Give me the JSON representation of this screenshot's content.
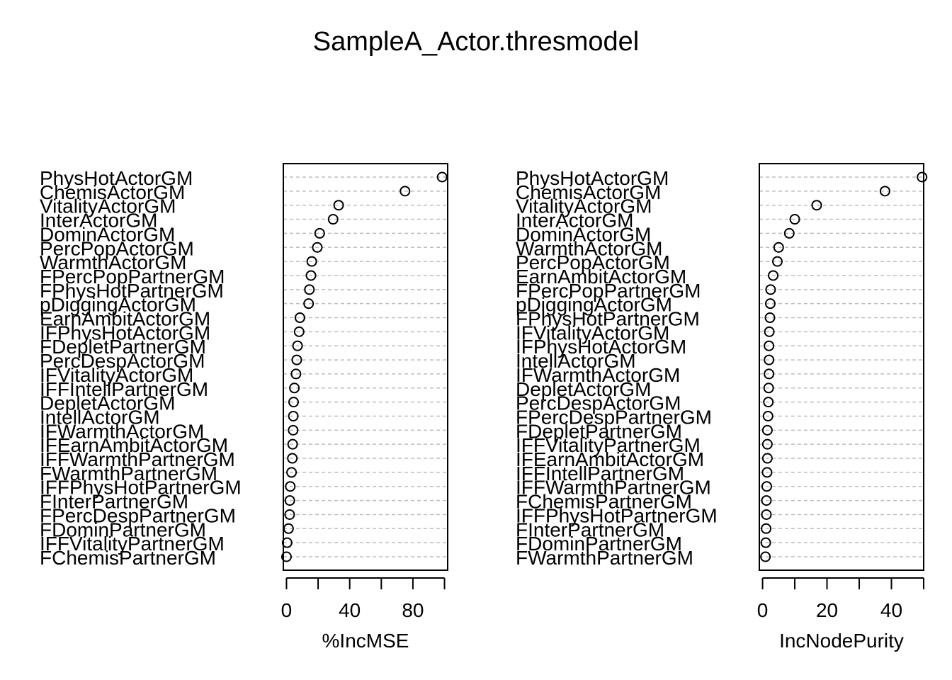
{
  "chart_data": {
    "title": "SampleA_Actor.thresmodel",
    "panels": [
      {
        "type": "scatter",
        "xlabel": "%IncMSE",
        "ylabel": "",
        "xlim": [
          -2,
          102
        ],
        "xticks": [
          0,
          20,
          40,
          60,
          80,
          100
        ],
        "xticklabels": [
          "0",
          "",
          "40",
          "",
          "80",
          ""
        ],
        "grid": "horizontal dashed",
        "labels": [
          "PhysHotActorGM",
          "ChemisActorGM",
          "VitalityActorGM",
          "InterActorGM",
          "DominActorGM",
          "PercPopActorGM",
          "WarmthActorGM",
          "FPercPopPartnerGM",
          "FPhysHotPartnerGM",
          "pDiggingActorGM",
          "EarnAmbitActorGM",
          "IFPhysHotActorGM",
          "FDepletPartnerGM",
          "PercDespActorGM",
          "IFVitalityActorGM",
          "IFFIntellPartnerGM",
          "DepletActorGM",
          "IntellActorGM",
          "IFWarmthActorGM",
          "IFEarnAmbitActorGM",
          "IFFWarmthPartnerGM",
          "FWarmthPartnerGM",
          "IFFPhysHotPartnerGM",
          "FInterPartnerGM",
          "FPercDespPartnerGM",
          "FDominPartnerGM",
          "IFFVitalityPartnerGM",
          "FChemisPartnerGM"
        ],
        "values": [
          98.5,
          75.0,
          33.0,
          29.5,
          21.0,
          19.5,
          16.0,
          15.5,
          14.5,
          14.0,
          8.5,
          8.0,
          7.0,
          6.5,
          6.0,
          5.0,
          4.5,
          4.3,
          4.2,
          3.9,
          3.7,
          3.2,
          2.4,
          2.1,
          2.0,
          1.3,
          0.4,
          0.0
        ]
      },
      {
        "type": "scatter",
        "xlabel": "IncNodePurity",
        "ylabel": "",
        "xlim": [
          -1,
          50
        ],
        "xticks": [
          0,
          10,
          20,
          30,
          40,
          50
        ],
        "xticklabels": [
          "0",
          "",
          "20",
          "",
          "40",
          ""
        ],
        "grid": "horizontal dashed",
        "labels": [
          "PhysHotActorGM",
          "ChemisActorGM",
          "VitalityActorGM",
          "InterActorGM",
          "DominActorGM",
          "WarmthActorGM",
          "PercPopActorGM",
          "EarnAmbitActorGM",
          "FPercPopPartnerGM",
          "pDiggingActorGM",
          "FPhysHotPartnerGM",
          "IFVitalityActorGM",
          "IFPhysHotActorGM",
          "IntellActorGM",
          "IFWarmthActorGM",
          "DepletActorGM",
          "PercDespActorGM",
          "FPercDespPartnerGM",
          "FDepletPartnerGM",
          "IFFVitalityPartnerGM",
          "IFEarnAmbitActorGM",
          "IFFIntellPartnerGM",
          "IFFWarmthPartnerGM",
          "FChemisPartnerGM",
          "IFFPhysHotPartnerGM",
          "FInterPartnerGM",
          "FDominPartnerGM",
          "FWarmthPartnerGM"
        ],
        "values": [
          49.5,
          38.0,
          16.8,
          10.0,
          8.3,
          5.0,
          4.6,
          3.3,
          2.5,
          2.4,
          2.3,
          2.1,
          2.0,
          2.0,
          2.0,
          1.9,
          1.8,
          1.7,
          1.5,
          1.5,
          1.5,
          1.4,
          1.3,
          1.2,
          1.2,
          1.1,
          1.0,
          0.9
        ]
      }
    ]
  }
}
